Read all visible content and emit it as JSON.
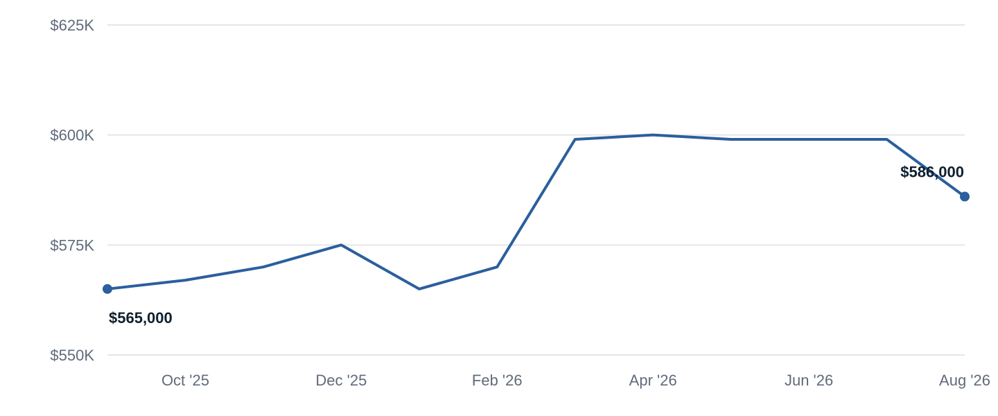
{
  "chart_data": {
    "type": "line",
    "x": [
      "Sep '25",
      "Oct '25",
      "Nov '25",
      "Dec '25",
      "Jan '26",
      "Feb '26",
      "Mar '26",
      "Apr '26",
      "May '26",
      "Jun '26",
      "Jul '26",
      "Aug '26"
    ],
    "series": [
      {
        "values": [
          565000,
          567000,
          570000,
          575000,
          565000,
          570000,
          599000,
          600000,
          599000,
          599000,
          599000,
          586000
        ]
      }
    ],
    "x_tick_labels": [
      {
        "index": 1,
        "label": "Oct '25"
      },
      {
        "index": 3,
        "label": "Dec '25"
      },
      {
        "index": 5,
        "label": "Feb '26"
      },
      {
        "index": 7,
        "label": "Apr '26"
      },
      {
        "index": 9,
        "label": "Jun '26"
      },
      {
        "index": 11,
        "label": "Aug '26"
      }
    ],
    "y_ticks": [
      {
        "value": 550000,
        "label": "$550K"
      },
      {
        "value": 575000,
        "label": "$575K"
      },
      {
        "value": 600000,
        "label": "$600K"
      },
      {
        "value": 625000,
        "label": "$625K"
      }
    ],
    "ylim": [
      550000,
      625000
    ],
    "grid": "horizontal",
    "data_labels": [
      {
        "index": 0,
        "text": "$565,000",
        "position": "below"
      },
      {
        "index": 11,
        "text": "$586,000",
        "position": "above-left"
      }
    ],
    "colors": {
      "line": "#2b5f9e",
      "marker": "#2b5f9e",
      "grid": "#e3e6ea"
    },
    "title": "",
    "xlabel": "",
    "ylabel": ""
  }
}
